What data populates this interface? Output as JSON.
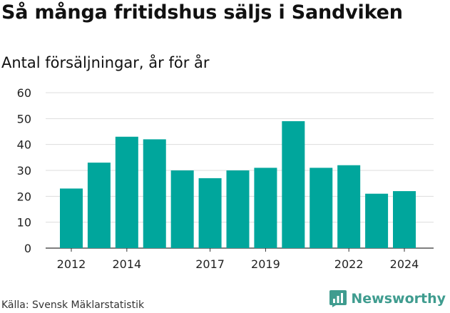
{
  "title": "Så många fritidshus säljs i Sandviken",
  "subtitle": "Antal försäljningar, år för år",
  "source": "Källa: Svensk Mäklarstatistik",
  "brand": {
    "name": "Newsworthy",
    "icon": "newsworthy-logo-icon",
    "color": "#3f9c8f"
  },
  "chart_data": {
    "type": "bar",
    "categories": [
      "2012",
      "2013",
      "2014",
      "2015",
      "2016",
      "2017",
      "2018",
      "2019",
      "2020",
      "2021",
      "2022",
      "2023",
      "2024"
    ],
    "values": [
      23,
      33,
      43,
      42,
      30,
      27,
      30,
      31,
      49,
      31,
      32,
      21,
      22
    ],
    "x_tick_labels": [
      "2012",
      "2014",
      "2017",
      "2019",
      "2022",
      "2024"
    ],
    "y_ticks": [
      "0",
      "10",
      "20",
      "30",
      "40",
      "50",
      "60"
    ],
    "ylim": [
      0,
      60
    ],
    "grid": true,
    "bar_color": "#00a69c",
    "xlabel": "",
    "ylabel": ""
  }
}
